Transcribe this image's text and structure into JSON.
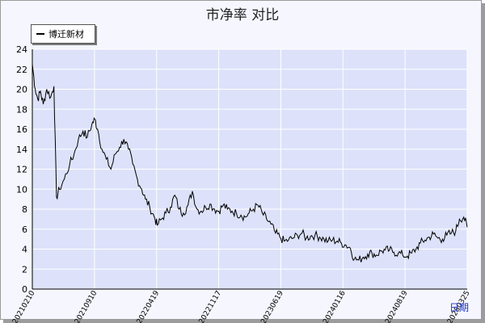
{
  "chart_data": {
    "type": "line",
    "title": "市净率  对比",
    "xlabel": "日期",
    "ylabel": "",
    "ylim": [
      0,
      24
    ],
    "yticks": [
      0,
      2,
      4,
      6,
      8,
      10,
      12,
      14,
      16,
      18,
      20,
      22,
      24
    ],
    "xticks": [
      "20210210",
      "20210910",
      "20220419",
      "20221117",
      "20230619",
      "20240116",
      "20240819",
      "20250325"
    ],
    "grid": true,
    "legend_position": "top-left",
    "colors": {
      "series": "#000000",
      "plot_bg": "#dde2fa",
      "grid": "#ffffff"
    },
    "series": [
      {
        "name": "博迁新材",
        "x": [
          "2021-02-10",
          "2021-02-20",
          "2021-03-01",
          "2021-03-10",
          "2021-03-20",
          "2021-04-01",
          "2021-04-15",
          "2021-04-26",
          "2021-05-05",
          "2021-05-15",
          "2021-06-01",
          "2021-06-20",
          "2021-07-05",
          "2021-07-20",
          "2021-08-05",
          "2021-08-20",
          "2021-09-05",
          "2021-09-15",
          "2021-09-25",
          "2021-10-10",
          "2021-10-25",
          "2021-11-10",
          "2021-11-25",
          "2021-12-10",
          "2021-12-25",
          "2022-01-10",
          "2022-01-25",
          "2022-02-10",
          "2022-02-25",
          "2022-03-10",
          "2022-03-25",
          "2022-04-10",
          "2022-04-20",
          "2022-05-05",
          "2022-05-20",
          "2022-06-05",
          "2022-06-20",
          "2022-07-05",
          "2022-07-20",
          "2022-08-05",
          "2022-08-20",
          "2022-09-05",
          "2022-09-20",
          "2022-10-05",
          "2022-10-20",
          "2022-11-05",
          "2022-11-20",
          "2022-12-05",
          "2022-12-20",
          "2023-01-05",
          "2023-01-20",
          "2023-02-05",
          "2023-02-20",
          "2023-03-05",
          "2023-03-20",
          "2023-04-05",
          "2023-04-20",
          "2023-05-05",
          "2023-05-20",
          "2023-06-05",
          "2023-06-20",
          "2023-07-05",
          "2023-07-20",
          "2023-08-05",
          "2023-08-20",
          "2023-09-05",
          "2023-09-20",
          "2023-10-05",
          "2023-10-20",
          "2023-11-05",
          "2023-11-20",
          "2023-12-05",
          "2023-12-20",
          "2024-01-05",
          "2024-01-20",
          "2024-02-05",
          "2024-02-20",
          "2024-03-05",
          "2024-03-20",
          "2024-04-05",
          "2024-04-20",
          "2024-05-05",
          "2024-05-20",
          "2024-06-05",
          "2024-06-20",
          "2024-07-05",
          "2024-07-20",
          "2024-08-05",
          "2024-08-20",
          "2024-09-05",
          "2024-09-20",
          "2024-10-05",
          "2024-10-20",
          "2024-11-05",
          "2024-11-20",
          "2024-12-05",
          "2024-12-20",
          "2025-01-05",
          "2025-01-20",
          "2025-02-05",
          "2025-02-20",
          "2025-03-05",
          "2025-03-20",
          "2025-04-01"
        ],
        "values": [
          22.5,
          20.0,
          19.0,
          19.8,
          18.5,
          20.0,
          19.2,
          20.3,
          9.2,
          10.0,
          11.0,
          12.5,
          13.5,
          15.0,
          15.8,
          15.2,
          16.5,
          17.0,
          16.0,
          14.0,
          13.0,
          12.0,
          13.5,
          14.2,
          15.0,
          14.0,
          12.5,
          11.0,
          10.0,
          9.0,
          8.2,
          7.2,
          6.4,
          7.0,
          7.6,
          8.2,
          9.4,
          8.0,
          7.6,
          8.4,
          9.8,
          8.0,
          7.8,
          8.2,
          8.5,
          8.0,
          7.8,
          8.4,
          8.0,
          7.8,
          7.6,
          7.4,
          7.2,
          7.6,
          8.0,
          8.4,
          7.6,
          7.0,
          6.5,
          5.6,
          5.2,
          4.8,
          4.9,
          5.1,
          5.4,
          5.6,
          5.1,
          5.3,
          5.4,
          5.2,
          5.0,
          4.8,
          4.9,
          4.8,
          4.6,
          4.4,
          4.1,
          3.0,
          2.9,
          3.2,
          3.5,
          3.6,
          3.4,
          3.8,
          3.9,
          3.9,
          3.7,
          3.6,
          3.4,
          3.3,
          3.6,
          4.0,
          4.6,
          4.9,
          5.2,
          5.5,
          5.1,
          5.0,
          5.4,
          5.6,
          5.8,
          7.0,
          7.2,
          6.2
        ]
      }
    ]
  }
}
